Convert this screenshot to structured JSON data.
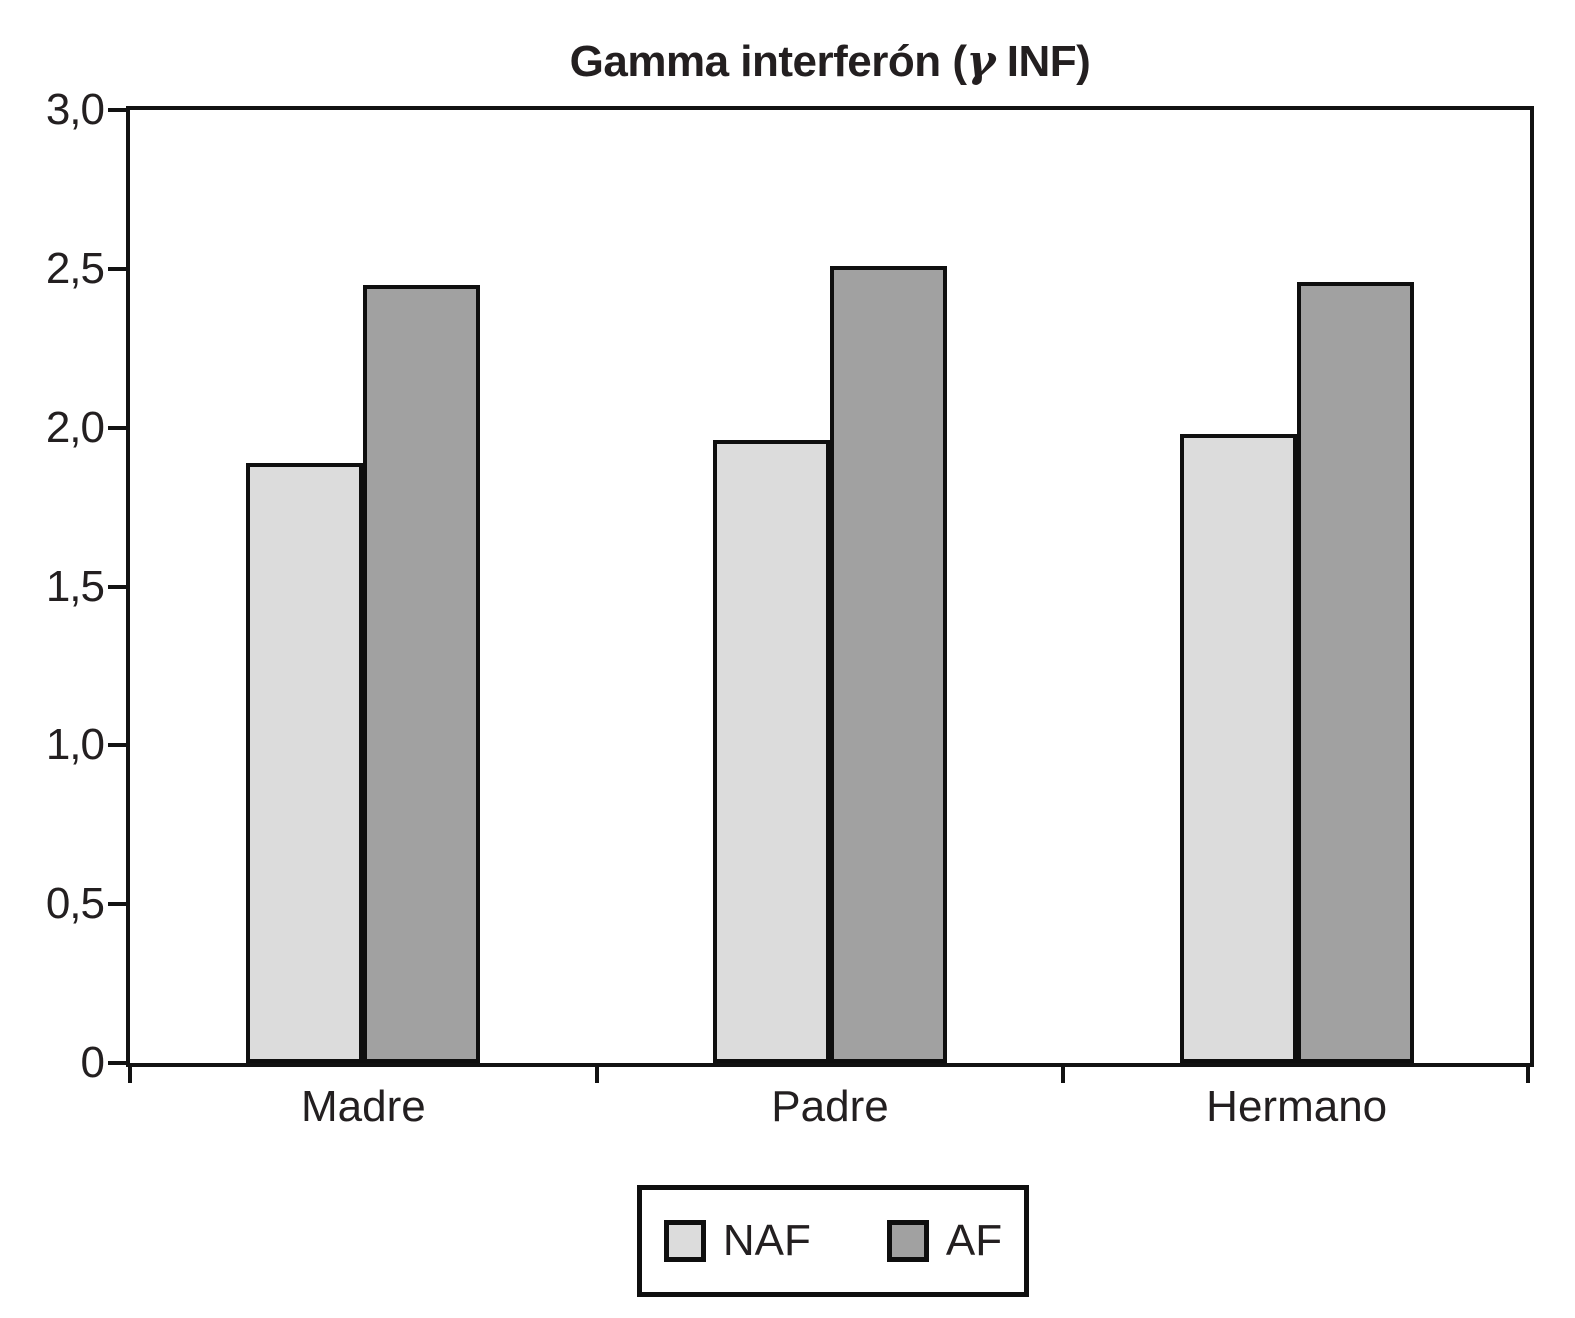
{
  "chart_data": {
    "type": "bar",
    "title": "Gamma interferón (γ INF)",
    "title_parts": {
      "prefix": "Gamma interferón (",
      "gamma": "γ",
      "suffix": " INF)"
    },
    "categories": [
      "Madre",
      "Padre",
      "Hermano"
    ],
    "series": [
      {
        "name": "NAF",
        "color": "#dcdcdc",
        "values": [
          1.89,
          1.96,
          1.98
        ]
      },
      {
        "name": "AF",
        "color": "#a1a1a1",
        "values": [
          2.45,
          2.51,
          2.46
        ]
      }
    ],
    "xlabel": "",
    "ylabel": "",
    "ylim": [
      0,
      3.0
    ],
    "yticks": [
      0,
      0.5,
      1.0,
      1.5,
      2.0,
      2.5,
      3.0
    ],
    "ytick_labels": [
      "0",
      "0,5",
      "1,0",
      "1,5",
      "2,0",
      "2,5",
      "3,0"
    ],
    "grid": false,
    "legend_position": "bottom",
    "colors": {
      "axis": "#121212",
      "text": "#231f20",
      "bar_edge": "#0f0f0f",
      "background": "#ffffff"
    }
  }
}
